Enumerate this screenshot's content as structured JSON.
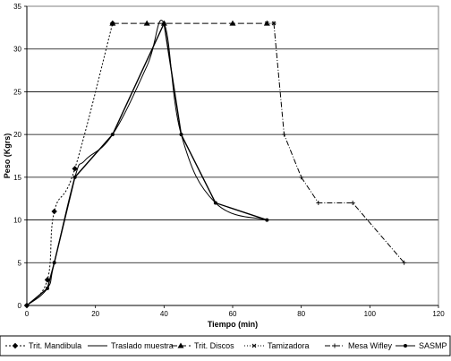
{
  "chart_data": {
    "type": "line",
    "title": "",
    "xlabel": "Tiempo (min)",
    "ylabel": "Peso (Kgrs)",
    "xlim": [
      0,
      120
    ],
    "ylim": [
      0,
      35
    ],
    "x_ticks": [
      "0",
      "20",
      "40",
      "60",
      "80",
      "100",
      "120"
    ],
    "y_ticks": [
      "0",
      "5",
      "10",
      "15",
      "20",
      "25",
      "30",
      "35"
    ],
    "grid": "horizontal",
    "legend_position": "bottom",
    "series": [
      {
        "name": "Trit. Mandibula",
        "color": "#000000",
        "dash": "2,2",
        "marker": "diamond",
        "smooth": true,
        "points": [
          [
            0,
            0
          ],
          [
            6,
            3
          ],
          [
            8,
            11
          ],
          [
            14,
            16
          ],
          [
            25,
            33
          ]
        ]
      },
      {
        "name": "Traslado muestra",
        "color": "#000000",
        "dash": "",
        "marker": "none",
        "smooth": true,
        "points": [
          [
            0,
            0
          ],
          [
            6,
            2
          ],
          [
            8,
            5
          ],
          [
            14,
            15
          ],
          [
            17,
            17
          ],
          [
            25,
            20
          ],
          [
            35,
            28
          ],
          [
            40,
            33
          ],
          [
            45,
            20
          ],
          [
            55,
            12
          ],
          [
            70,
            10
          ]
        ]
      },
      {
        "name": "Trit. Discos",
        "color": "#000000",
        "dash": "7,3",
        "marker": "triangle",
        "smooth": false,
        "points": [
          [
            25,
            33
          ],
          [
            35,
            33
          ],
          [
            40,
            33
          ],
          [
            60,
            33
          ],
          [
            70,
            33
          ]
        ]
      },
      {
        "name": "Tamizadora",
        "color": "#000000",
        "dash": "1,2",
        "marker": "x",
        "smooth": false,
        "points": [
          [
            70,
            33
          ],
          [
            72,
            33
          ]
        ]
      },
      {
        "name": "Mesa Wifley",
        "color": "#000000",
        "dash": "6,2,1,2",
        "marker": "cross",
        "smooth": false,
        "points": [
          [
            72,
            33
          ],
          [
            75,
            20
          ],
          [
            80,
            15
          ],
          [
            85,
            12
          ],
          [
            95,
            12
          ],
          [
            110,
            5
          ]
        ]
      },
      {
        "name": "SASMP",
        "color": "#000000",
        "dash": "",
        "marker": "circle",
        "smooth": false,
        "points": [
          [
            0,
            0
          ],
          [
            6,
            2
          ],
          [
            8,
            5
          ],
          [
            14,
            15
          ],
          [
            25,
            20
          ],
          [
            40,
            33
          ],
          [
            45,
            20
          ],
          [
            55,
            12
          ],
          [
            70,
            10
          ]
        ]
      }
    ]
  }
}
